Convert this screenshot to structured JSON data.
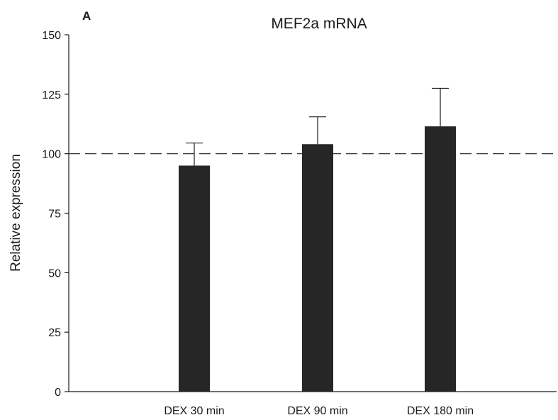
{
  "chart_data": {
    "type": "bar",
    "panel_label": "A",
    "title": "MEF2a mRNA",
    "xlabel": "",
    "ylabel": "Relative expression",
    "ylim": [
      0,
      150
    ],
    "yticks": [
      0,
      25,
      50,
      75,
      100,
      125,
      150
    ],
    "categories": [
      "DEX 30 min",
      "DEX 90 min",
      "DEX 180 min"
    ],
    "values": [
      95,
      104,
      111.5
    ],
    "error_upper": [
      104.5,
      115.5,
      127.5
    ],
    "reference_line": 100,
    "bar_color": "#262626",
    "grid": false,
    "legend": "none"
  }
}
